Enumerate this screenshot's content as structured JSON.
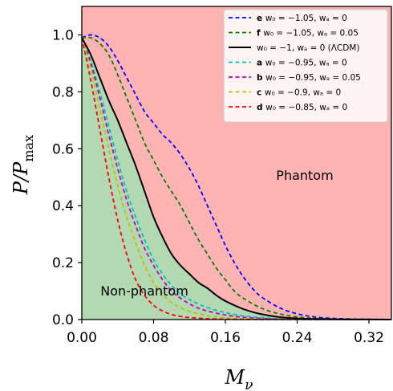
{
  "chart_data": {
    "type": "line",
    "xlabel": "M",
    "xlabel_sub": "ν",
    "ylabel": "P/P",
    "ylabel_sub": "max",
    "xlim": [
      0,
      0.345
    ],
    "ylim": [
      0,
      1.1
    ],
    "xticks": [
      0.0,
      0.08,
      0.16,
      0.24,
      0.32
    ],
    "xtick_labels": [
      "0.00",
      "0.08",
      "0.16",
      "0.24",
      "0.32"
    ],
    "yticks": [
      0.0,
      0.2,
      0.4,
      0.6,
      0.8,
      1.0
    ],
    "ytick_labels": [
      "0.0",
      "0.2",
      "0.4",
      "0.6",
      "0.8",
      "1.0"
    ],
    "grid": false,
    "legend_position": "top-right",
    "regions": {
      "phantom": {
        "label": "Phantom",
        "color": "#ffb3b3"
      },
      "non_phantom": {
        "label": "Non-phantom",
        "color": "#b3d9b3"
      }
    },
    "series": [
      {
        "key": "e",
        "name": "w₀ = −1.05, wₐ = 0",
        "color": "#0000ff",
        "dash": true,
        "x": [
          0,
          0.01,
          0.02,
          0.03,
          0.04,
          0.05,
          0.06,
          0.07,
          0.08,
          0.09,
          0.1,
          0.11,
          0.12,
          0.13,
          0.14,
          0.15,
          0.16,
          0.17,
          0.18,
          0.19,
          0.2,
          0.22,
          0.24,
          0.26,
          0.28,
          0.3,
          0.32,
          0.345
        ],
        "y": [
          0.99,
          1.0,
          0.99,
          0.96,
          0.91,
          0.85,
          0.79,
          0.73,
          0.69,
          0.65,
          0.62,
          0.58,
          0.53,
          0.47,
          0.4,
          0.33,
          0.26,
          0.2,
          0.15,
          0.11,
          0.08,
          0.042,
          0.02,
          0.009,
          0.004,
          0.002,
          0.001,
          0.0
        ]
      },
      {
        "key": "f",
        "name": "w₀ = −1.05, wₐ = 0.05",
        "color": "#007f00",
        "dash": true,
        "x": [
          0,
          0.01,
          0.02,
          0.03,
          0.04,
          0.05,
          0.06,
          0.07,
          0.08,
          0.09,
          0.1,
          0.11,
          0.12,
          0.13,
          0.14,
          0.15,
          0.16,
          0.17,
          0.18,
          0.2,
          0.22,
          0.24,
          0.26,
          0.28,
          0.3,
          0.345
        ],
        "y": [
          0.99,
          0.99,
          0.97,
          0.93,
          0.86,
          0.78,
          0.7,
          0.62,
          0.56,
          0.5,
          0.45,
          0.4,
          0.34,
          0.28,
          0.23,
          0.18,
          0.14,
          0.1,
          0.075,
          0.04,
          0.02,
          0.009,
          0.004,
          0.002,
          0.001,
          0.0
        ]
      },
      {
        "key": "",
        "name": "w₀ = −1, wₐ = 0 (ΛCDM)",
        "color": "#000000",
        "dash": false,
        "x": [
          0,
          0.01,
          0.02,
          0.03,
          0.04,
          0.05,
          0.06,
          0.07,
          0.08,
          0.09,
          0.1,
          0.11,
          0.12,
          0.13,
          0.14,
          0.15,
          0.16,
          0.18,
          0.2,
          0.22,
          0.24,
          0.26,
          0.28,
          0.3,
          0.345
        ],
        "y": [
          0.99,
          0.93,
          0.85,
          0.77,
          0.7,
          0.62,
          0.54,
          0.45,
          0.36,
          0.29,
          0.23,
          0.19,
          0.16,
          0.13,
          0.11,
          0.085,
          0.065,
          0.037,
          0.019,
          0.009,
          0.004,
          0.002,
          0.001,
          0.0005,
          0.0
        ]
      },
      {
        "key": "a",
        "name": "w₀ = −0.95, wₐ = 0",
        "color": "#00bfbf",
        "dash": true,
        "x": [
          0,
          0.01,
          0.02,
          0.03,
          0.04,
          0.05,
          0.06,
          0.07,
          0.08,
          0.09,
          0.1,
          0.11,
          0.12,
          0.13,
          0.14,
          0.16,
          0.18,
          0.2,
          0.22,
          0.24,
          0.26,
          0.3,
          0.345
        ],
        "y": [
          0.99,
          0.91,
          0.8,
          0.68,
          0.56,
          0.45,
          0.36,
          0.28,
          0.21,
          0.16,
          0.12,
          0.09,
          0.07,
          0.055,
          0.042,
          0.024,
          0.013,
          0.007,
          0.0035,
          0.0017,
          0.0008,
          0.0002,
          0.0
        ]
      },
      {
        "key": "b",
        "name": "w₀ = −0.95, wₐ = 0.05",
        "color": "#bf00bf",
        "dash": true,
        "x": [
          0,
          0.01,
          0.02,
          0.03,
          0.04,
          0.05,
          0.06,
          0.07,
          0.08,
          0.09,
          0.1,
          0.11,
          0.12,
          0.13,
          0.14,
          0.16,
          0.18,
          0.2,
          0.22,
          0.24,
          0.3,
          0.345
        ],
        "y": [
          0.99,
          0.9,
          0.78,
          0.65,
          0.53,
          0.42,
          0.33,
          0.25,
          0.19,
          0.14,
          0.1,
          0.075,
          0.055,
          0.04,
          0.03,
          0.016,
          0.008,
          0.004,
          0.002,
          0.001,
          0.0002,
          0.0
        ]
      },
      {
        "key": "c",
        "name": "w₀ = −0.9, wₐ = 0",
        "color": "#bfbf00",
        "dash": true,
        "x": [
          0,
          0.01,
          0.02,
          0.03,
          0.04,
          0.05,
          0.06,
          0.07,
          0.08,
          0.09,
          0.1,
          0.11,
          0.12,
          0.14,
          0.16,
          0.18,
          0.2,
          0.22,
          0.26,
          0.3,
          0.345
        ],
        "y": [
          0.99,
          0.88,
          0.74,
          0.6,
          0.47,
          0.36,
          0.27,
          0.19,
          0.13,
          0.09,
          0.06,
          0.042,
          0.029,
          0.014,
          0.0065,
          0.003,
          0.0013,
          0.0006,
          0.0001,
          0.0,
          0.0
        ]
      },
      {
        "key": "d",
        "name": "w₀ = −0.85, wₐ = 0",
        "color": "#ff0000",
        "dash": true,
        "x": [
          0,
          0.01,
          0.02,
          0.03,
          0.04,
          0.05,
          0.06,
          0.07,
          0.08,
          0.09,
          0.1,
          0.11,
          0.12,
          0.14,
          0.16,
          0.18,
          0.2,
          0.24,
          0.3,
          0.345
        ],
        "y": [
          0.99,
          0.84,
          0.67,
          0.5,
          0.35,
          0.23,
          0.14,
          0.085,
          0.05,
          0.03,
          0.018,
          0.011,
          0.007,
          0.003,
          0.0012,
          0.0005,
          0.0002,
          0.0,
          0.0,
          0.0
        ]
      }
    ]
  }
}
